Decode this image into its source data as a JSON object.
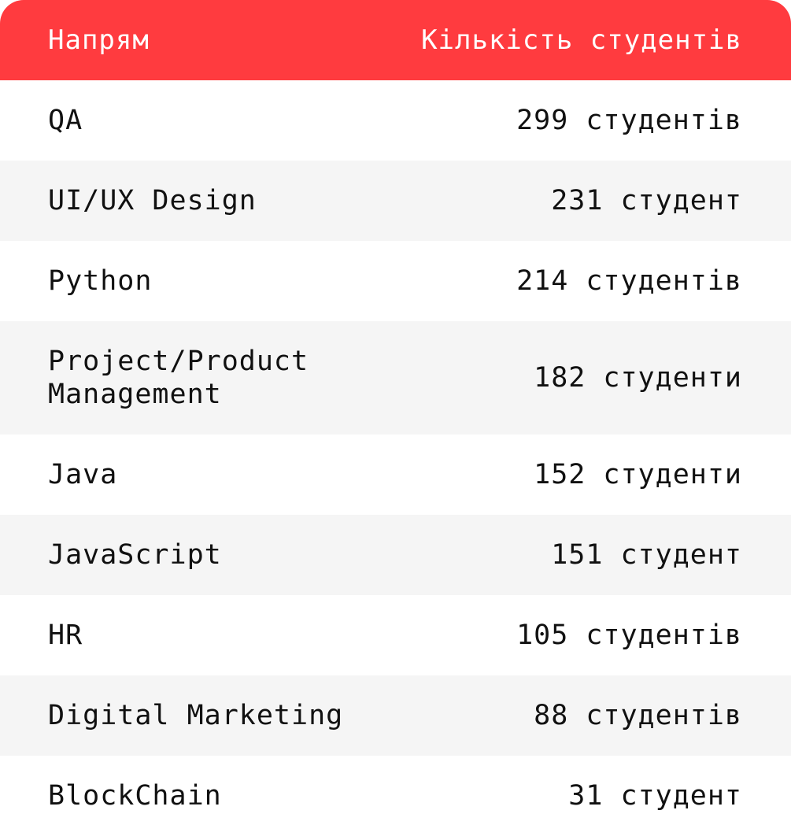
{
  "header": {
    "direction_label": "Напрям",
    "count_label": "Кількість студентів"
  },
  "accent_color": "#ff3b3f",
  "rows": [
    {
      "name": "QA",
      "count": "299 студентів"
    },
    {
      "name": "UI/UX Design",
      "count": "231 студент"
    },
    {
      "name": "Python",
      "count": "214 студентів"
    },
    {
      "name": "Project/Product\nManagement",
      "count": "182 студенти"
    },
    {
      "name": "Java",
      "count": "152 студенти"
    },
    {
      "name": "JavaScript",
      "count": "151 студент"
    },
    {
      "name": "HR",
      "count": "105 студентів"
    },
    {
      "name": "Digital Marketing",
      "count": "88 студентів"
    },
    {
      "name": "BlockChain",
      "count": "31 студент"
    }
  ]
}
